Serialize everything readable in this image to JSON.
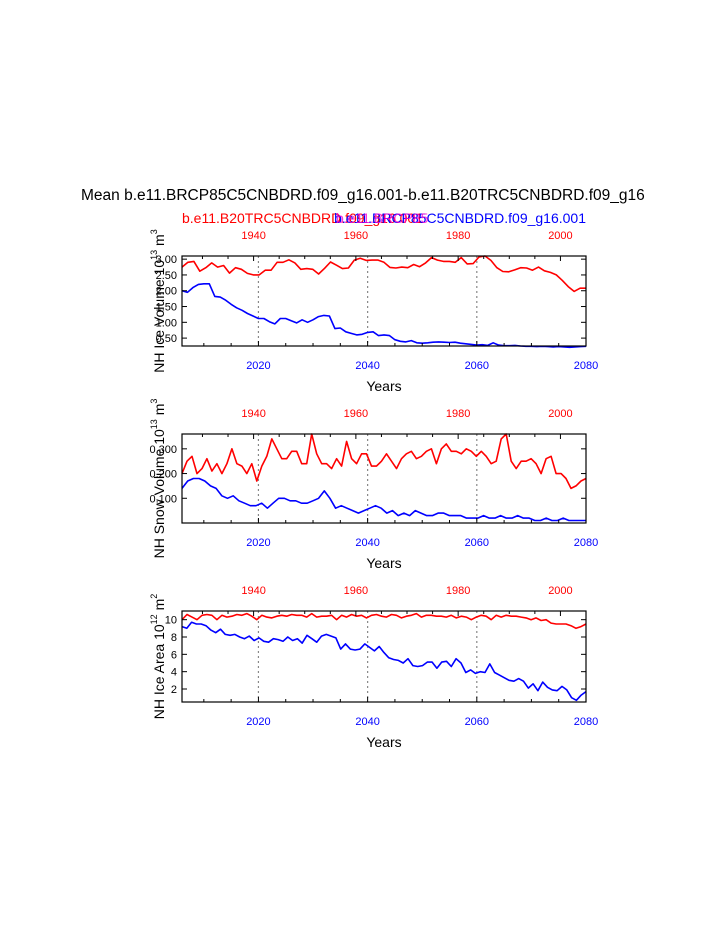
{
  "figure": {
    "title": "Mean b.e11.BRCP85C5CNBDRD.f09_g16.001-b.e11.B20TRC5CNBDRD.f09_g16",
    "legend_red": "b.e11.B20TRC5CNBDRD.f09_g16.001",
    "legend_blue": "b.e11.BRCP85C5CNBDRD.f09_g16.001",
    "legend_overlap": "b.e11.BRCP85"
  },
  "colors": {
    "red": "#ff0000",
    "blue": "#0000ff",
    "grid": "#888888",
    "axis": "#000000"
  },
  "chart_data": [
    {
      "type": "line",
      "ylabel": "NH Ice Volume 10",
      "ylabel_exp": "13",
      "ylabel_unit": "m",
      "ylabel_unit_exp": "3",
      "xlabel": "Years",
      "x_bottom": {
        "range": [
          2006,
          2080
        ],
        "ticks": [
          2020,
          2040,
          2060,
          2080
        ]
      },
      "x_top": {
        "range": [
          1926,
          2005
        ],
        "ticks": [
          1940,
          1960,
          1980,
          2000
        ]
      },
      "ylim": [
        0.25,
        3.1
      ],
      "yticks": [
        "0.50",
        "1.00",
        "1.50",
        "2.00",
        "2.50",
        "3.00"
      ],
      "ytick_values": [
        0.5,
        1.0,
        1.5,
        2.0,
        2.5,
        3.0
      ],
      "grid_x": [
        2020,
        2040,
        2060
      ],
      "series": [
        {
          "color": "red",
          "values": [
            2.75,
            2.9,
            2.93,
            2.62,
            2.73,
            2.88,
            2.75,
            2.8,
            2.56,
            2.73,
            2.68,
            2.55,
            2.5,
            2.5,
            2.65,
            2.65,
            2.9,
            2.9,
            2.98,
            2.88,
            2.68,
            2.7,
            2.68,
            2.53,
            2.71,
            2.91,
            2.81,
            2.7,
            2.72,
            2.97,
            3.03,
            2.96,
            2.97,
            2.97,
            2.9,
            2.74,
            2.72,
            2.75,
            2.73,
            2.83,
            2.76,
            2.88,
            3.05,
            2.97,
            2.93,
            2.93,
            2.9,
            3.05,
            2.85,
            2.86,
            3.07,
            3.1,
            2.96,
            2.73,
            2.61,
            2.6,
            2.66,
            2.73,
            2.72,
            2.65,
            2.75,
            2.63,
            2.58,
            2.5,
            2.33,
            2.13,
            1.98,
            2.08,
            2.08
          ]
        },
        {
          "color": "blue",
          "values": [
            2.0,
            1.95,
            2.1,
            2.2,
            2.22,
            2.22,
            1.82,
            1.8,
            1.7,
            1.57,
            1.46,
            1.38,
            1.28,
            1.2,
            1.12,
            1.12,
            1.02,
            0.95,
            1.12,
            1.12,
            1.05,
            0.98,
            1.08,
            1.0,
            1.08,
            1.18,
            1.22,
            1.2,
            0.8,
            0.82,
            0.7,
            0.65,
            0.6,
            0.62,
            0.68,
            0.7,
            0.58,
            0.6,
            0.58,
            0.45,
            0.4,
            0.38,
            0.42,
            0.35,
            0.34,
            0.35,
            0.37,
            0.38,
            0.37,
            0.36,
            0.37,
            0.34,
            0.32,
            0.3,
            0.28,
            0.29,
            0.27,
            0.35,
            0.28,
            0.26,
            0.26,
            0.27,
            0.25,
            0.24,
            0.24,
            0.23,
            0.24,
            0.23,
            0.22,
            0.23,
            0.22,
            0.21,
            0.22,
            0.23,
            0.24
          ]
        }
      ]
    },
    {
      "type": "line",
      "ylabel": "NH Snow Volume 10",
      "ylabel_exp": "13",
      "ylabel_unit": "m",
      "ylabel_unit_exp": "3",
      "xlabel": "Years",
      "x_bottom": {
        "range": [
          2006,
          2080
        ],
        "ticks": [
          2020,
          2040,
          2060,
          2080
        ]
      },
      "x_top": {
        "range": [
          1926,
          2005
        ],
        "ticks": [
          1940,
          1960,
          1980,
          2000
        ]
      },
      "ylim": [
        0.0,
        0.36
      ],
      "yticks": [
        "0.100",
        "0.200",
        "0.300"
      ],
      "ytick_values": [
        0.1,
        0.2,
        0.3
      ],
      "grid_x": [
        2020,
        2040,
        2060
      ],
      "series": [
        {
          "color": "red",
          "values": [
            0.2,
            0.25,
            0.27,
            0.2,
            0.22,
            0.26,
            0.21,
            0.24,
            0.2,
            0.24,
            0.3,
            0.24,
            0.23,
            0.2,
            0.24,
            0.17,
            0.23,
            0.27,
            0.34,
            0.3,
            0.26,
            0.26,
            0.29,
            0.29,
            0.24,
            0.24,
            0.36,
            0.28,
            0.24,
            0.24,
            0.22,
            0.26,
            0.23,
            0.33,
            0.26,
            0.24,
            0.28,
            0.28,
            0.23,
            0.23,
            0.25,
            0.28,
            0.25,
            0.22,
            0.26,
            0.28,
            0.29,
            0.26,
            0.27,
            0.29,
            0.3,
            0.24,
            0.3,
            0.32,
            0.29,
            0.29,
            0.28,
            0.3,
            0.29,
            0.27,
            0.29,
            0.27,
            0.24,
            0.25,
            0.34,
            0.36,
            0.25,
            0.22,
            0.25,
            0.25,
            0.26,
            0.24,
            0.2,
            0.26,
            0.27,
            0.2,
            0.2,
            0.18,
            0.14,
            0.15,
            0.17,
            0.18
          ]
        },
        {
          "color": "blue",
          "values": [
            0.14,
            0.17,
            0.18,
            0.18,
            0.17,
            0.15,
            0.14,
            0.11,
            0.1,
            0.11,
            0.09,
            0.08,
            0.07,
            0.07,
            0.08,
            0.06,
            0.08,
            0.1,
            0.1,
            0.09,
            0.09,
            0.08,
            0.08,
            0.09,
            0.1,
            0.13,
            0.1,
            0.06,
            0.07,
            0.06,
            0.05,
            0.04,
            0.05,
            0.06,
            0.07,
            0.06,
            0.04,
            0.05,
            0.03,
            0.04,
            0.03,
            0.05,
            0.04,
            0.03,
            0.03,
            0.04,
            0.04,
            0.03,
            0.03,
            0.03,
            0.02,
            0.02,
            0.02,
            0.03,
            0.02,
            0.02,
            0.03,
            0.02,
            0.02,
            0.03,
            0.02,
            0.02,
            0.01,
            0.01,
            0.02,
            0.01,
            0.01,
            0.02,
            0.01,
            0.01,
            0.01,
            0.01
          ]
        }
      ]
    },
    {
      "type": "line",
      "ylabel": "NH Ice Area 10",
      "ylabel_exp": "12",
      "ylabel_unit": "m",
      "ylabel_unit_exp": "2",
      "xlabel": "Years",
      "x_bottom": {
        "range": [
          2006,
          2080
        ],
        "ticks": [
          2020,
          2040,
          2060,
          2080
        ]
      },
      "x_top": {
        "range": [
          1926,
          2005
        ],
        "ticks": [
          1940,
          1960,
          1980,
          2000
        ]
      },
      "ylim": [
        0.5,
        11
      ],
      "yticks": [
        "2",
        "4",
        "6",
        "8",
        "10"
      ],
      "ytick_values": [
        2,
        4,
        6,
        8,
        10
      ],
      "grid_x": [
        2020,
        2040,
        2060
      ],
      "series": [
        {
          "color": "red",
          "values": [
            10.0,
            10.6,
            10.3,
            10.0,
            10.5,
            10.6,
            10.5,
            10.0,
            10.5,
            10.3,
            10.4,
            10.6,
            10.5,
            10.7,
            10.4,
            10.0,
            10.5,
            10.3,
            10.2,
            10.4,
            10.5,
            10.4,
            10.6,
            10.5,
            10.5,
            10.3,
            10.7,
            10.3,
            10.4,
            10.4,
            10.5,
            10.0,
            10.5,
            10.3,
            10.6,
            10.4,
            10.5,
            10.2,
            10.5,
            10.6,
            10.4,
            10.3,
            10.6,
            10.5,
            10.2,
            10.4,
            10.5,
            10.7,
            10.3,
            10.5,
            10.5,
            10.4,
            10.4,
            10.3,
            10.5,
            10.2,
            10.4,
            10.3,
            10.0,
            10.3,
            10.5,
            10.4,
            10.0,
            10.5,
            10.3,
            10.5,
            10.4,
            10.4,
            10.3,
            10.2,
            10.0,
            10.2,
            9.9,
            10.0,
            9.6,
            9.5,
            9.5,
            9.5,
            9.3,
            9.0,
            9.2,
            9.5
          ]
        },
        {
          "color": "blue",
          "values": [
            9.2,
            9.0,
            9.7,
            9.5,
            9.5,
            9.3,
            8.8,
            8.5,
            8.9,
            8.3,
            8.2,
            8.3,
            8.0,
            7.8,
            8.1,
            7.6,
            7.9,
            7.5,
            7.4,
            7.8,
            7.7,
            7.5,
            8.0,
            7.6,
            7.8,
            7.3,
            8.2,
            7.8,
            7.4,
            8.1,
            8.3,
            8.1,
            7.9,
            6.6,
            7.2,
            6.6,
            6.5,
            6.6,
            7.2,
            6.8,
            6.4,
            6.9,
            6.2,
            5.6,
            5.4,
            5.3,
            5.0,
            5.5,
            4.7,
            4.6,
            4.7,
            5.1,
            5.1,
            4.4,
            5.1,
            5.2,
            4.6,
            5.5,
            5.0,
            3.9,
            4.2,
            3.8,
            4.0,
            3.9,
            4.9,
            3.9,
            3.6,
            3.3,
            3.0,
            2.9,
            3.2,
            2.9,
            2.1,
            2.6,
            1.8,
            2.8,
            2.2,
            1.9,
            1.8,
            2.3,
            1.9,
            1.0,
            0.7,
            1.3,
            1.7
          ]
        }
      ]
    }
  ]
}
